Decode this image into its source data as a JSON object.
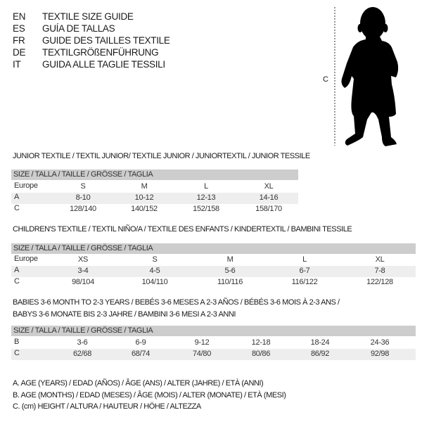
{
  "languages": [
    {
      "code": "EN",
      "title": "TEXTILE SIZE GUIDE"
    },
    {
      "code": "ES",
      "title": "GUÍA DE TALLAS"
    },
    {
      "code": "FR",
      "title": "GUIDE DES TAILLES TEXTILE"
    },
    {
      "code": "DE",
      "title": "TEXTILGRÖßENFÜHRUNG"
    },
    {
      "code": "IT",
      "title": "GUIDA ALLE TAGLIE TESSILI"
    }
  ],
  "figure": {
    "measure_label": "C",
    "icon": "baby-silhouette"
  },
  "tables": [
    {
      "title": "JUNIOR TEXTILE / TEXTIL JUNIOR/ TEXTILE JUNIOR / JUNIORTEXTIL / JUNIOR TESSILE",
      "header": "SIZE / TALLA / TAILLE / GRÖSSE / TAGLIA",
      "rows": [
        {
          "label": "Europe",
          "values": [
            "S",
            "M",
            "L",
            "XL"
          ]
        },
        {
          "label": "A",
          "values": [
            "8-10",
            "10-12",
            "12-13",
            "14-16"
          ]
        },
        {
          "label": "C",
          "values": [
            "128/140",
            "140/152",
            "152/158",
            "158/170"
          ]
        }
      ]
    },
    {
      "title": "CHILDREN'S TEXTILE / TEXTIL NIÑO/A / TEXTILE DES ENFANTS / KINDERTEXTIL / BAMBINI TESSILE",
      "header": "SIZE / TALLA / TAILLE / GRÖSSE / TAGLIA",
      "rows": [
        {
          "label": "Europe",
          "values": [
            "XS",
            "S",
            "M",
            "L",
            "XL"
          ]
        },
        {
          "label": "A",
          "values": [
            "3-4",
            "4-5",
            "5-6",
            "6-7",
            "7-8"
          ]
        },
        {
          "label": "C",
          "values": [
            "98/104",
            "104/110",
            "110/116",
            "116/122",
            "122/128"
          ]
        }
      ]
    },
    {
      "title": "BABIES 3-6 MONTH TO 2-3 YEARS / BEBÉS 3-6 MESES A 2-3 AÑOS / BÉBÉS 3-6 MOIS À 2-3 ANS /",
      "title2": "BABYS 3-6 MONATE BIS 2-3 JAHRE / BAMBINI 3-6 MESI A 2-3 ANNI",
      "header": "SIZE / TALLA / TAILLE / GRÖSSE / TAGLIA",
      "rows": [
        {
          "label": "B",
          "values": [
            "3-6",
            "6-9",
            "9-12",
            "12-18",
            "18-24",
            "24-36"
          ]
        },
        {
          "label": "C",
          "values": [
            "62/68",
            "68/74",
            "74/80",
            "80/86",
            "86/92",
            "92/98"
          ]
        }
      ]
    }
  ],
  "legend": [
    "A. AGE (YEARS) / EDAD (AÑOS) / ÂGE (ANS) / ALTER (JAHRE) / ETÀ (ANNI)",
    "B. AGE (MONTHS) / EDAD (MESES) / ÂGE (MOIS) / ALTER (MONATE) / ETÀ (MESI)",
    "C. (cm) HEIGHT / ALTURA / HAUTEUR / HÖHE / ALTEZZA"
  ],
  "colors": {
    "header_band": "#cdcdcd",
    "alt_row": "#eeeeee",
    "text": "#1a1a1a"
  }
}
